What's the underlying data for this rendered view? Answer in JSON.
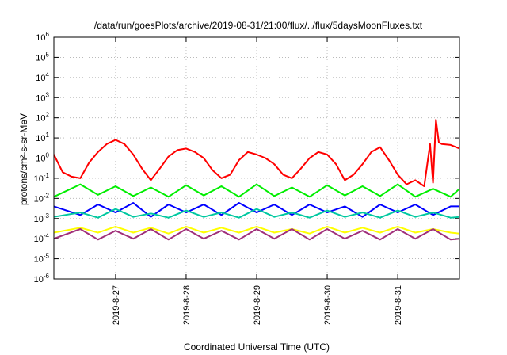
{
  "chart_data": {
    "type": "line",
    "title": "/data/run/goesPlots/archive/2019-08-31/21:00/flux/../flux/5daysMoonFluxes.txt",
    "xlabel": "Coordinated Universal Time (UTC)",
    "ylabel": "protons/cm²-s-sr-MeV",
    "y_scale": "log",
    "ylim": [
      "1e-6",
      "1e6"
    ],
    "y_ticks": [
      {
        "value": -6,
        "base": "10",
        "exp": "-6"
      },
      {
        "value": -5,
        "base": "10",
        "exp": "-5"
      },
      {
        "value": -4,
        "base": "10",
        "exp": "-4"
      },
      {
        "value": -3,
        "base": "10",
        "exp": "-3"
      },
      {
        "value": -2,
        "base": "10",
        "exp": "-2"
      },
      {
        "value": -1,
        "base": "10",
        "exp": "-1"
      },
      {
        "value": 0,
        "base": "10",
        "exp": "0"
      },
      {
        "value": 1,
        "base": "10",
        "exp": "1"
      },
      {
        "value": 2,
        "base": "10",
        "exp": "2"
      },
      {
        "value": 3,
        "base": "10",
        "exp": "3"
      },
      {
        "value": 4,
        "base": "10",
        "exp": "4"
      },
      {
        "value": 5,
        "base": "10",
        "exp": "5"
      },
      {
        "value": 6,
        "base": "10",
        "exp": "6"
      }
    ],
    "xlim": [
      "2019-08-26T03:00",
      "2019-08-31T21:00"
    ],
    "x_ticks": [
      "2019-8-27",
      "2019-8-28",
      "2019-8-29",
      "2019-8-30",
      "2019-8-31"
    ],
    "grid": true,
    "series": [
      {
        "color": "#ff0000",
        "x": [
          "2019-08-26T03:00",
          "2019-08-26T06:00",
          "2019-08-26T09:00",
          "2019-08-26T12:00",
          "2019-08-26T15:00",
          "2019-08-26T18:00",
          "2019-08-26T21:00",
          "2019-08-27T00:00",
          "2019-08-27T03:00",
          "2019-08-27T06:00",
          "2019-08-27T09:00",
          "2019-08-27T12:00",
          "2019-08-27T15:00",
          "2019-08-27T18:00",
          "2019-08-27T21:00",
          "2019-08-28T00:00",
          "2019-08-28T03:00",
          "2019-08-28T06:00",
          "2019-08-28T09:00",
          "2019-08-28T12:00",
          "2019-08-28T15:00",
          "2019-08-28T18:00",
          "2019-08-28T21:00",
          "2019-08-29T00:00",
          "2019-08-29T03:00",
          "2019-08-29T06:00",
          "2019-08-29T09:00",
          "2019-08-29T12:00",
          "2019-08-29T15:00",
          "2019-08-29T18:00",
          "2019-08-29T21:00",
          "2019-08-30T00:00",
          "2019-08-30T03:00",
          "2019-08-30T06:00",
          "2019-08-30T09:00",
          "2019-08-30T12:00",
          "2019-08-30T15:00",
          "2019-08-30T18:00",
          "2019-08-30T21:00",
          "2019-08-31T00:00",
          "2019-08-31T03:00",
          "2019-08-31T06:00",
          "2019-08-31T09:00",
          "2019-08-31T11:00",
          "2019-08-31T12:00",
          "2019-08-31T13:00",
          "2019-08-31T14:00",
          "2019-08-31T15:00",
          "2019-08-31T18:00",
          "2019-08-31T21:00"
        ],
        "y": [
          1.5,
          0.2,
          0.12,
          0.1,
          0.6,
          2,
          5,
          8,
          5,
          1.5,
          0.3,
          0.08,
          0.3,
          1.2,
          2.5,
          3,
          2,
          1,
          0.25,
          0.1,
          0.15,
          0.8,
          2,
          1.5,
          1,
          0.5,
          0.15,
          0.1,
          0.3,
          1,
          2,
          1.5,
          0.5,
          0.08,
          0.15,
          0.5,
          2,
          3.5,
          0.8,
          0.15,
          0.05,
          0.08,
          0.04,
          5,
          0.06,
          80,
          6,
          5,
          4.5,
          3
        ]
      },
      {
        "color": "#00ee00",
        "x": [
          "2019-08-26T03:00",
          "2019-08-26T12:00",
          "2019-08-26T18:00",
          "2019-08-27T00:00",
          "2019-08-27T06:00",
          "2019-08-27T12:00",
          "2019-08-27T18:00",
          "2019-08-28T00:00",
          "2019-08-28T06:00",
          "2019-08-28T12:00",
          "2019-08-28T18:00",
          "2019-08-29T00:00",
          "2019-08-29T06:00",
          "2019-08-29T12:00",
          "2019-08-29T18:00",
          "2019-08-30T00:00",
          "2019-08-30T06:00",
          "2019-08-30T12:00",
          "2019-08-30T18:00",
          "2019-08-31T00:00",
          "2019-08-31T06:00",
          "2019-08-31T12:00",
          "2019-08-31T18:00",
          "2019-08-31T21:00"
        ],
        "y": [
          0.012,
          0.05,
          0.015,
          0.04,
          0.013,
          0.035,
          0.012,
          0.045,
          0.014,
          0.04,
          0.012,
          0.05,
          0.013,
          0.035,
          0.012,
          0.045,
          0.014,
          0.04,
          0.013,
          0.05,
          0.012,
          0.03,
          0.012,
          0.03
        ]
      },
      {
        "color": "#0000ff",
        "x": [
          "2019-08-26T03:00",
          "2019-08-26T12:00",
          "2019-08-26T18:00",
          "2019-08-27T00:00",
          "2019-08-27T06:00",
          "2019-08-27T12:00",
          "2019-08-27T18:00",
          "2019-08-28T00:00",
          "2019-08-28T06:00",
          "2019-08-28T12:00",
          "2019-08-28T18:00",
          "2019-08-29T00:00",
          "2019-08-29T06:00",
          "2019-08-29T12:00",
          "2019-08-29T18:00",
          "2019-08-30T00:00",
          "2019-08-30T06:00",
          "2019-08-30T12:00",
          "2019-08-30T18:00",
          "2019-08-31T00:00",
          "2019-08-31T06:00",
          "2019-08-31T12:00",
          "2019-08-31T18:00",
          "2019-08-31T21:00"
        ],
        "y": [
          0.004,
          0.0015,
          0.005,
          0.002,
          0.006,
          0.0012,
          0.005,
          0.002,
          0.005,
          0.0015,
          0.006,
          0.002,
          0.005,
          0.0015,
          0.005,
          0.002,
          0.004,
          0.0012,
          0.005,
          0.002,
          0.005,
          0.0015,
          0.004,
          0.004
        ]
      },
      {
        "color": "#00c8a0",
        "x": [
          "2019-08-26T03:00",
          "2019-08-26T12:00",
          "2019-08-26T18:00",
          "2019-08-27T00:00",
          "2019-08-27T06:00",
          "2019-08-27T12:00",
          "2019-08-27T18:00",
          "2019-08-28T00:00",
          "2019-08-28T06:00",
          "2019-08-28T12:00",
          "2019-08-28T18:00",
          "2019-08-29T00:00",
          "2019-08-29T06:00",
          "2019-08-29T12:00",
          "2019-08-29T18:00",
          "2019-08-30T00:00",
          "2019-08-30T06:00",
          "2019-08-30T12:00",
          "2019-08-30T18:00",
          "2019-08-31T00:00",
          "2019-08-31T06:00",
          "2019-08-31T12:00",
          "2019-08-31T18:00",
          "2019-08-31T21:00"
        ],
        "y": [
          0.0012,
          0.002,
          0.0011,
          0.003,
          0.0012,
          0.0018,
          0.0011,
          0.0025,
          0.0012,
          0.002,
          0.0011,
          0.003,
          0.0012,
          0.002,
          0.0011,
          0.0025,
          0.0012,
          0.002,
          0.0011,
          0.0025,
          0.0012,
          0.002,
          0.0011,
          0.0012
        ]
      },
      {
        "color": "#ffff00",
        "x": [
          "2019-08-26T03:00",
          "2019-08-26T12:00",
          "2019-08-26T18:00",
          "2019-08-27T00:00",
          "2019-08-27T06:00",
          "2019-08-27T12:00",
          "2019-08-27T18:00",
          "2019-08-28T00:00",
          "2019-08-28T06:00",
          "2019-08-28T12:00",
          "2019-08-28T18:00",
          "2019-08-29T00:00",
          "2019-08-29T06:00",
          "2019-08-29T12:00",
          "2019-08-29T18:00",
          "2019-08-30T00:00",
          "2019-08-30T06:00",
          "2019-08-30T12:00",
          "2019-08-30T18:00",
          "2019-08-31T00:00",
          "2019-08-31T06:00",
          "2019-08-31T12:00",
          "2019-08-31T18:00",
          "2019-08-31T21:00"
        ],
        "y": [
          0.0002,
          0.00035,
          0.0002,
          0.0004,
          0.0002,
          0.00035,
          0.00018,
          0.0004,
          0.0002,
          0.00035,
          0.0002,
          0.0004,
          0.0002,
          0.0003,
          0.00018,
          0.0004,
          0.0002,
          0.00035,
          0.0002,
          0.0004,
          0.0002,
          0.0003,
          0.0002,
          0.00018
        ]
      },
      {
        "color": "#a0307a",
        "x": [
          "2019-08-26T03:00",
          "2019-08-26T12:00",
          "2019-08-26T18:00",
          "2019-08-27T00:00",
          "2019-08-27T06:00",
          "2019-08-27T12:00",
          "2019-08-27T18:00",
          "2019-08-28T00:00",
          "2019-08-28T06:00",
          "2019-08-28T12:00",
          "2019-08-28T18:00",
          "2019-08-29T00:00",
          "2019-08-29T06:00",
          "2019-08-29T12:00",
          "2019-08-29T18:00",
          "2019-08-30T00:00",
          "2019-08-30T06:00",
          "2019-08-30T12:00",
          "2019-08-30T18:00",
          "2019-08-31T00:00",
          "2019-08-31T06:00",
          "2019-08-31T12:00",
          "2019-08-31T18:00",
          "2019-08-31T21:00"
        ],
        "y": [
          0.0001,
          0.0003,
          9e-05,
          0.00025,
          0.0001,
          0.0003,
          9e-05,
          0.0003,
          0.0001,
          0.00025,
          9e-05,
          0.0003,
          0.0001,
          0.0003,
          9e-05,
          0.0003,
          0.0001,
          0.00025,
          9e-05,
          0.0003,
          0.0001,
          0.0003,
          9e-05,
          0.0001
        ]
      }
    ]
  }
}
